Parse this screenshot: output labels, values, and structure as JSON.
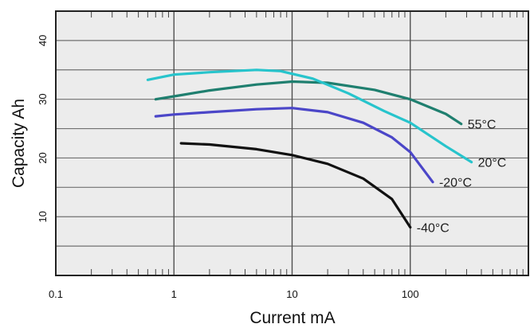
{
  "chart_data": {
    "type": "line",
    "title": "",
    "xlabel": "Current mA",
    "ylabel": "Capacity Ah",
    "x_scale": "log",
    "xlim": [
      0.1,
      1000
    ],
    "ylim": [
      0,
      45
    ],
    "x_ticks": [
      {
        "value": 0.1,
        "label": "0.1"
      },
      {
        "value": 1,
        "label": "1"
      },
      {
        "value": 10,
        "label": "10"
      },
      {
        "value": 100,
        "label": "100"
      }
    ],
    "y_ticks": [
      {
        "value": 10,
        "label": "10"
      },
      {
        "value": 20,
        "label": "20"
      },
      {
        "value": 30,
        "label": "30"
      },
      {
        "value": 40,
        "label": "40"
      }
    ],
    "grid": true,
    "legend": "inline labels at series ends",
    "series": [
      {
        "name": "55°C",
        "color": "#1f7f6f",
        "points": [
          [
            0.7,
            30.0
          ],
          [
            1,
            30.5
          ],
          [
            2,
            31.5
          ],
          [
            5,
            32.5
          ],
          [
            10,
            33.0
          ],
          [
            20,
            32.8
          ],
          [
            50,
            31.6
          ],
          [
            100,
            30.0
          ],
          [
            200,
            27.5
          ],
          [
            270,
            25.8
          ]
        ]
      },
      {
        "name": "20°C",
        "color": "#27c4cc",
        "points": [
          [
            0.6,
            33.3
          ],
          [
            1,
            34.2
          ],
          [
            2,
            34.6
          ],
          [
            5,
            35.0
          ],
          [
            8,
            34.8
          ],
          [
            15,
            33.5
          ],
          [
            30,
            31.0
          ],
          [
            60,
            28.0
          ],
          [
            100,
            26.0
          ],
          [
            200,
            22.0
          ],
          [
            330,
            19.3
          ]
        ]
      },
      {
        "name": "-20°C",
        "color": "#4b46c8",
        "points": [
          [
            0.7,
            27.1
          ],
          [
            1,
            27.4
          ],
          [
            2,
            27.8
          ],
          [
            5,
            28.3
          ],
          [
            10,
            28.5
          ],
          [
            20,
            27.8
          ],
          [
            40,
            26.0
          ],
          [
            70,
            23.5
          ],
          [
            100,
            21.0
          ],
          [
            155,
            15.9
          ]
        ]
      },
      {
        "name": "-40°C",
        "color": "#111111",
        "points": [
          [
            1.15,
            22.5
          ],
          [
            2,
            22.3
          ],
          [
            5,
            21.5
          ],
          [
            10,
            20.5
          ],
          [
            20,
            19.0
          ],
          [
            40,
            16.5
          ],
          [
            70,
            13.0
          ],
          [
            100,
            8.2
          ]
        ]
      }
    ]
  }
}
